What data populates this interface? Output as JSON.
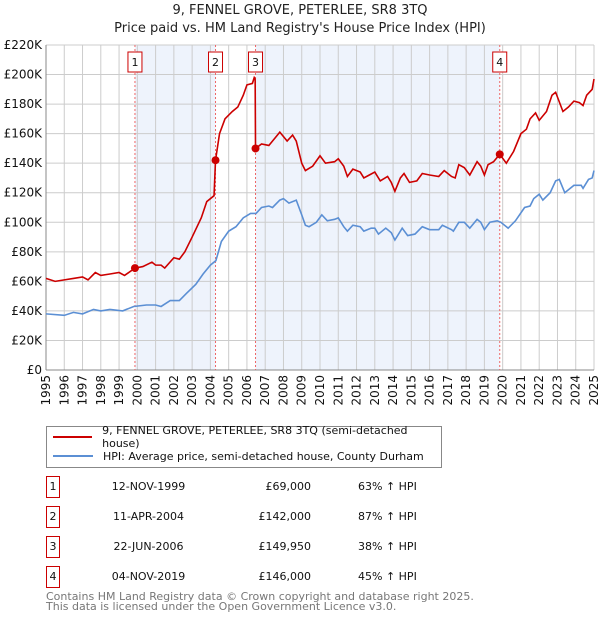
{
  "chart_data": {
    "type": "line",
    "title": "9, FENNEL GROVE, PETERLEE, SR8 3TQ",
    "subtitle": "Price paid vs. HM Land Registry's House Price Index (HPI)",
    "xlim": [
      1995,
      2025
    ],
    "ylim": [
      0,
      220000
    ],
    "grid": true,
    "y_ticks": [
      {
        "v": 0,
        "label": "£0"
      },
      {
        "v": 20000,
        "label": "£20K"
      },
      {
        "v": 40000,
        "label": "£40K"
      },
      {
        "v": 60000,
        "label": "£60K"
      },
      {
        "v": 80000,
        "label": "£80K"
      },
      {
        "v": 100000,
        "label": "£100K"
      },
      {
        "v": 120000,
        "label": "£120K"
      },
      {
        "v": 140000,
        "label": "£140K"
      },
      {
        "v": 160000,
        "label": "£160K"
      },
      {
        "v": 180000,
        "label": "£180K"
      },
      {
        "v": 200000,
        "label": "£200K"
      },
      {
        "v": 220000,
        "label": "£220K"
      }
    ],
    "x_ticks": [
      "1995",
      "1996",
      "1997",
      "1998",
      "1999",
      "2000",
      "2001",
      "2002",
      "2003",
      "2004",
      "2005",
      "2006",
      "2007",
      "2008",
      "2009",
      "2010",
      "2011",
      "2012",
      "2013",
      "2014",
      "2015",
      "2016",
      "2017",
      "2018",
      "2019",
      "2020",
      "2021",
      "2022",
      "2023",
      "2024",
      "2025"
    ],
    "series": [
      {
        "name": "9, FENNEL GROVE, PETERLEE, SR8 3TQ (semi-detached house)",
        "color": "#cc0000",
        "x": [
          1995,
          1995.5,
          1996,
          1996.5,
          1997,
          1997.3,
          1997.7,
          1998,
          1998.5,
          1999,
          1999.3,
          1999.87,
          2000.3,
          2000.8,
          2001,
          2001.3,
          2001.5,
          2002,
          2002.3,
          2002.6,
          2003,
          2003.5,
          2003.8,
          2004.2,
          2004.28,
          2004.5,
          2004.8,
          2005.2,
          2005.5,
          2005.8,
          2006,
          2006.3,
          2006.4,
          2006.45,
          2006.47,
          2006.8,
          2007.2,
          2007.6,
          2007.8,
          2008.2,
          2008.5,
          2008.7,
          2009,
          2009.2,
          2009.6,
          2010,
          2010.3,
          2010.8,
          2011,
          2011.3,
          2011.5,
          2011.8,
          2012.2,
          2012.4,
          2012.7,
          2013,
          2013.3,
          2013.7,
          2013.9,
          2014.1,
          2014.4,
          2014.6,
          2014.9,
          2015.3,
          2015.6,
          2016,
          2016.5,
          2016.8,
          2017.2,
          2017.4,
          2017.6,
          2017.9,
          2018.2,
          2018.6,
          2018.8,
          2019.0,
          2019.2,
          2019.5,
          2019.84,
          2020.2,
          2020.6,
          2021,
          2021.3,
          2021.5,
          2021.8,
          2022,
          2022.4,
          2022.7,
          2022.9,
          2023.3,
          2023.6,
          2023.9,
          2024.2,
          2024.4,
          2024.6,
          2024.9,
          2025
        ],
        "y": [
          62,
          60,
          61,
          62,
          63,
          61,
          66,
          64,
          65,
          66,
          64,
          69,
          70,
          73,
          71,
          71,
          69,
          76,
          75,
          80,
          90,
          103,
          114,
          118,
          142,
          160,
          170,
          175,
          178,
          186,
          193,
          194,
          198,
          197,
          150,
          153,
          152,
          158,
          161,
          155,
          159,
          155,
          140,
          135,
          138,
          145,
          140,
          141,
          143,
          138,
          131,
          136,
          134,
          130,
          132,
          134,
          128,
          131,
          127,
          121,
          130,
          133,
          127,
          128,
          133,
          132,
          131,
          135,
          131,
          130,
          139,
          137,
          132,
          141,
          138,
          132,
          139,
          141,
          146,
          140,
          148,
          160,
          163,
          170,
          174,
          169,
          175,
          186,
          188,
          175,
          178,
          182,
          181,
          179,
          186,
          190,
          197
        ]
      },
      {
        "name": "HPI: Average price, semi-detached house, County Durham",
        "color": "#5b8fd4",
        "x": [
          1995,
          1996,
          1996.5,
          1997,
          1997.6,
          1998,
          1998.5,
          1999.2,
          1999.8,
          2000.5,
          2001,
          2001.3,
          2001.8,
          2002.3,
          2002.7,
          2003.2,
          2003.6,
          2004.0,
          2004.3,
          2004.6,
          2005,
          2005.4,
          2005.8,
          2006.2,
          2006.5,
          2006.8,
          2007.2,
          2007.4,
          2007.8,
          2008.0,
          2008.3,
          2008.7,
          2009,
          2009.2,
          2009.4,
          2009.8,
          2010.1,
          2010.4,
          2010.8,
          2011,
          2011.3,
          2011.5,
          2011.8,
          2012.2,
          2012.4,
          2012.8,
          2013,
          2013.2,
          2013.6,
          2013.9,
          2014.1,
          2014.5,
          2014.8,
          2015.2,
          2015.6,
          2016,
          2016.5,
          2016.7,
          2017.2,
          2017.3,
          2017.6,
          2017.9,
          2018.2,
          2018.6,
          2018.8,
          2019.0,
          2019.3,
          2019.7,
          2019.9,
          2020.3,
          2020.7,
          2021.2,
          2021.5,
          2021.7,
          2022,
          2022.2,
          2022.6,
          2022.9,
          2023.1,
          2023.4,
          2023.9,
          2024.3,
          2024.4,
          2024.7,
          2024.9,
          2025
        ],
        "y": [
          38,
          37,
          39,
          38,
          41,
          40,
          41,
          40,
          43,
          44,
          44,
          43,
          47,
          47,
          52,
          58,
          65,
          71,
          74,
          87,
          94,
          97,
          103,
          106,
          106,
          110,
          111,
          110,
          115,
          116,
          113,
          115,
          105,
          98,
          97,
          100,
          105,
          101,
          102,
          103,
          97,
          94,
          98,
          97,
          94,
          96,
          96,
          92,
          96,
          93,
          88,
          96,
          91,
          92,
          97,
          95,
          95,
          98,
          95,
          94,
          100,
          100,
          96,
          102,
          100,
          95,
          100,
          101,
          100,
          96,
          101,
          110,
          111,
          116,
          119,
          115,
          120,
          128,
          129,
          120,
          125,
          125,
          123,
          129,
          130,
          135
        ]
      }
    ],
    "y_units": "thousands GBP",
    "sales": [
      {
        "n": "1",
        "date": "12-NOV-1999",
        "x": 1999.87,
        "price": "£69,000",
        "value": 69,
        "hpi": "63% ↑ HPI"
      },
      {
        "n": "2",
        "date": "11-APR-2004",
        "x": 2004.28,
        "price": "£142,000",
        "value": 142,
        "hpi": "87% ↑ HPI"
      },
      {
        "n": "3",
        "date": "22-JUN-2006",
        "x": 2006.47,
        "price": "£149,950",
        "value": 149.95,
        "hpi": "38% ↑ HPI"
      },
      {
        "n": "4",
        "date": "04-NOV-2019",
        "x": 2019.84,
        "price": "£146,000",
        "value": 146,
        "hpi": "45% ↑ HPI"
      }
    ],
    "legend_placement": "below"
  },
  "footer": {
    "line1": "Contains HM Land Registry data © Crown copyright and database right 2025.",
    "line2": "This data is licensed under the Open Government Licence v3.0."
  }
}
